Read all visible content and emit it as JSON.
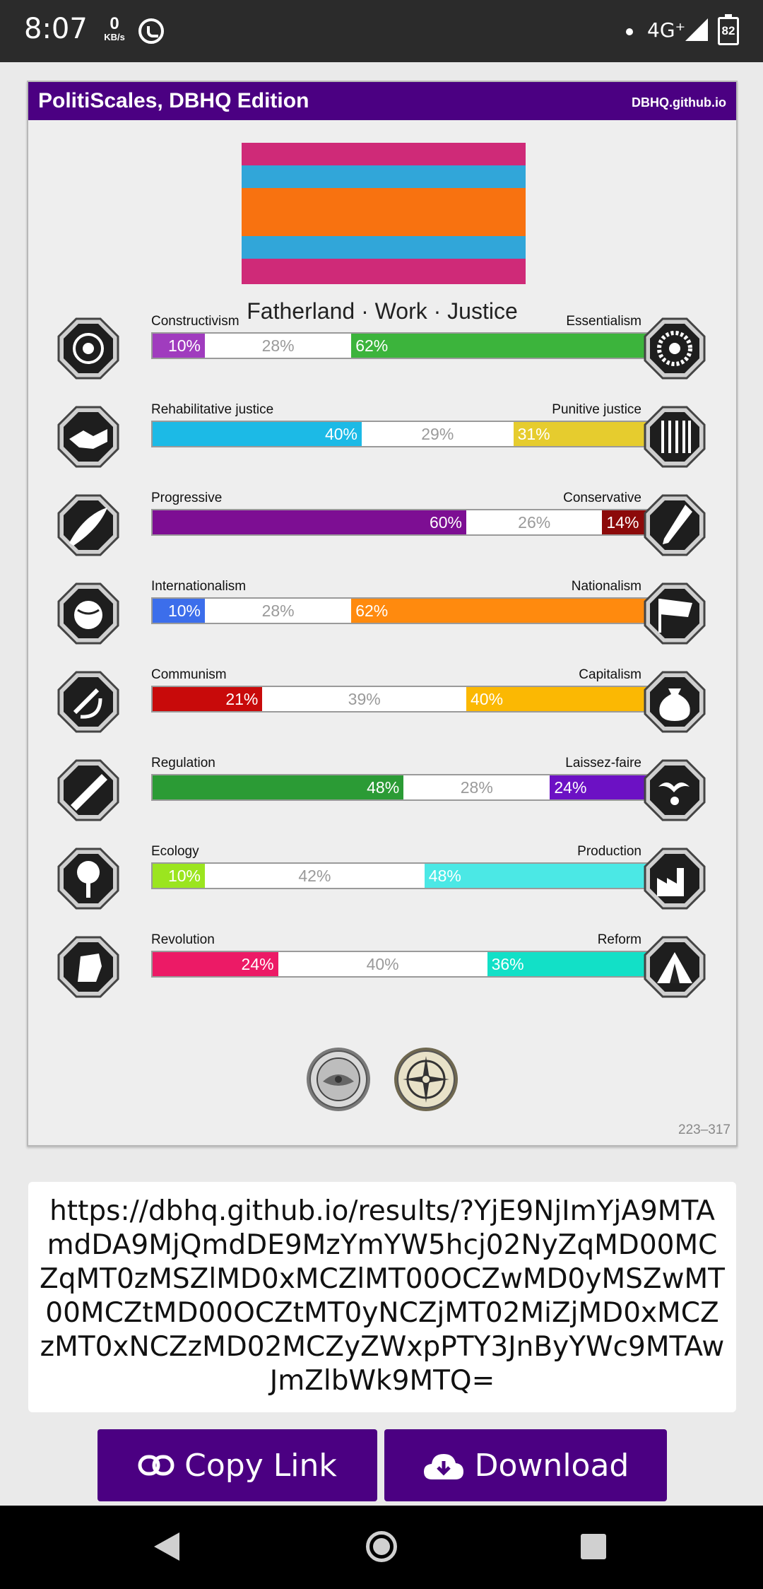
{
  "status_bar": {
    "time": "8:07",
    "speed_value": "0",
    "speed_unit": "KB/s",
    "network": "4G⁺",
    "battery": "82"
  },
  "card": {
    "title": "PolitiScales, DBHQ Edition",
    "site": "DBHQ.github.io",
    "flag_colors": [
      "#cf2a78",
      "#31a6d9",
      "#f87210",
      "#31a6d9",
      "#cf2a78"
    ],
    "motto": "Fatherland · Work · Justice",
    "code": "223–317"
  },
  "axes": [
    {
      "left_label": "Constructivism",
      "right_label": "Essentialism",
      "left": 10,
      "mid": 28,
      "right": 62,
      "left_text": "10%",
      "mid_text": "28%",
      "right_text": "62%",
      "left_color": "#a03cbe",
      "right_color": "#3cb43c",
      "left_icon": "eye-icon",
      "right_icon": "flower-icon"
    },
    {
      "left_label": "Rehabilitative justice",
      "right_label": "Punitive justice",
      "left": 40,
      "mid": 29,
      "right": 31,
      "left_text": "40%",
      "mid_text": "29%",
      "right_text": "31%",
      "left_color": "#1cbae6",
      "right_color": "#e6cc2e",
      "left_icon": "handshake-icon",
      "right_icon": "prison-bars-icon"
    },
    {
      "left_label": "Progressive",
      "right_label": "Conservative",
      "left": 60,
      "mid": 26,
      "right": 14,
      "left_text": "60%",
      "mid_text": "26%",
      "right_text": "14%",
      "left_color": "#7d0e93",
      "right_color": "#8c0a0a",
      "left_icon": "comet-icon",
      "right_icon": "quill-icon"
    },
    {
      "left_label": "Internationalism",
      "right_label": "Nationalism",
      "left": 10,
      "mid": 28,
      "right": 62,
      "left_text": "10%",
      "mid_text": "28%",
      "right_text": "62%",
      "left_color": "#3c6eeb",
      "right_color": "#ff8a0e",
      "left_icon": "globe-icon",
      "right_icon": "flag-icon"
    },
    {
      "left_label": "Communism",
      "right_label": "Capitalism",
      "left": 21,
      "mid": 39,
      "right": 40,
      "left_text": "21%",
      "mid_text": "39%",
      "right_text": "40%",
      "left_color": "#c80a0a",
      "right_color": "#fbb803",
      "left_icon": "hammer-sickle-icon",
      "right_icon": "money-bag-icon"
    },
    {
      "left_label": "Regulation",
      "right_label": "Laissez-faire",
      "left": 48,
      "mid": 28,
      "right": 24,
      "left_text": "48%",
      "mid_text": "28%",
      "right_text": "24%",
      "left_color": "#2b9b35",
      "right_color": "#6c11c4",
      "left_icon": "ruler-icon",
      "right_icon": "birds-icon"
    },
    {
      "left_label": "Ecology",
      "right_label": "Production",
      "left": 10,
      "mid": 42,
      "right": 48,
      "left_text": "10%",
      "mid_text": "42%",
      "right_text": "48%",
      "left_color": "#9be51f",
      "right_color": "#4be8e5",
      "left_icon": "tree-icon",
      "right_icon": "factory-icon"
    },
    {
      "left_label": "Revolution",
      "right_label": "Reform",
      "left": 24,
      "mid": 40,
      "right": 36,
      "left_text": "24%",
      "mid_text": "40%",
      "right_text": "36%",
      "left_color": "#ec1a66",
      "right_color": "#12e0c7",
      "left_icon": "fist-icon",
      "right_icon": "tent-icon"
    }
  ],
  "badges": [
    "silver-coin-badge-icon",
    "gold-compass-badge-icon"
  ],
  "url_text": "https://dbhq.github.io/results/?YjE9NjImYjA9MTAmdDA9MjQmdDE9MzYmYW5hcj02NyZqMD00MCZqMT0zMSZlMD0xMCZlMT00OCZwMD0yMSZwMT00MCZtMD00OCZtMT0yNCZjMT02MiZjMD0xMCZzMT0xNCZzMD02MCZyZWxpPTY3JnByYWc9MTAwJmZlbWk9MTQ=",
  "buttons": {
    "copy_label": "Copy Link",
    "download_label": "Download"
  }
}
